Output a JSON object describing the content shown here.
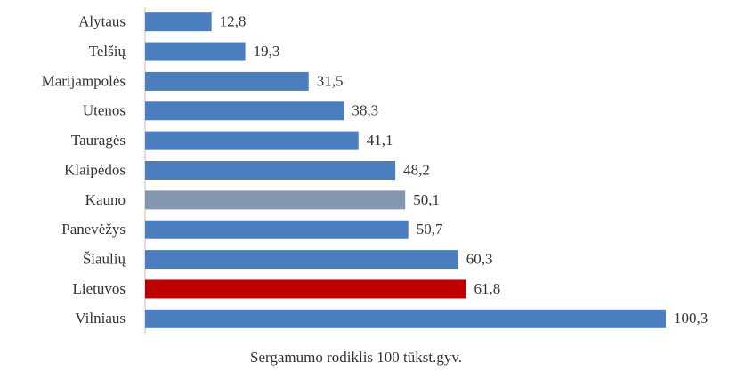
{
  "chart_data": {
    "type": "bar",
    "orientation": "horizontal",
    "xlabel": "Sergamumo rodiklis 100 tūkst.gyv.",
    "categories": [
      "Alytaus",
      "Telšių",
      "Marijampolės",
      "Utenos",
      "Tauragės",
      "Klaipėdos",
      "Kauno",
      "Panevėžys",
      "Šiaulių",
      "Lietuvos",
      "Vilniaus"
    ],
    "values": [
      12.8,
      19.3,
      31.5,
      38.3,
      41.1,
      48.2,
      50.1,
      50.7,
      60.3,
      61.8,
      100.3
    ],
    "value_labels": [
      "12,8",
      "19,3",
      "31,5",
      "38,3",
      "41,1",
      "48,2",
      "50,1",
      "50,7",
      "60,3",
      "61,8",
      "100,3"
    ],
    "colors": [
      "#4a7ebf",
      "#4a7ebf",
      "#4a7ebf",
      "#4a7ebf",
      "#4a7ebf",
      "#4a7ebf",
      "#8497b0",
      "#4a7ebf",
      "#4a7ebf",
      "#c00000",
      "#4a7ebf"
    ]
  }
}
